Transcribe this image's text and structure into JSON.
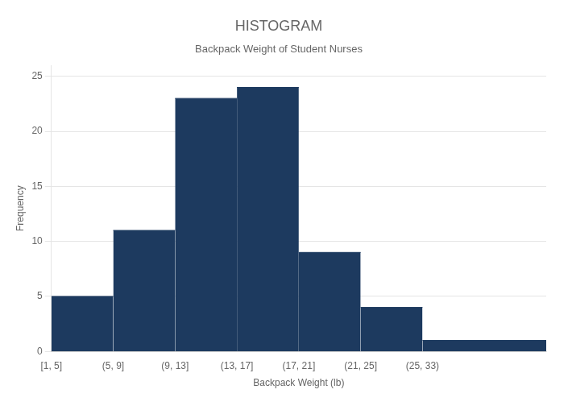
{
  "chart_data": {
    "type": "histogram",
    "title": "HISTOGRAM",
    "subtitle": "Backpack Weight of Student Nurses",
    "xlabel": "Backpack Weight (lb)",
    "ylabel": "Frequency",
    "bins": [
      1,
      5,
      9,
      13,
      17,
      21,
      25,
      33
    ],
    "values": [
      5,
      11,
      23,
      24,
      9,
      4,
      1
    ],
    "color": "#1d3a5f",
    "xlim": [
      1,
      33
    ],
    "xticks": [
      {
        "value": 1,
        "label": "[1, 5]"
      },
      {
        "value": 5,
        "label": "(5, 9]"
      },
      {
        "value": 9,
        "label": "(9, 13]"
      },
      {
        "value": 13,
        "label": "(13, 17]"
      },
      {
        "value": 17,
        "label": "(17, 21]"
      },
      {
        "value": 21,
        "label": "(21, 25]"
      },
      {
        "value": 25,
        "label": "(25, 33)"
      }
    ],
    "ylim": [
      0,
      26
    ],
    "yticks": [
      0,
      5,
      10,
      15,
      20,
      25
    ],
    "grid": "y"
  }
}
